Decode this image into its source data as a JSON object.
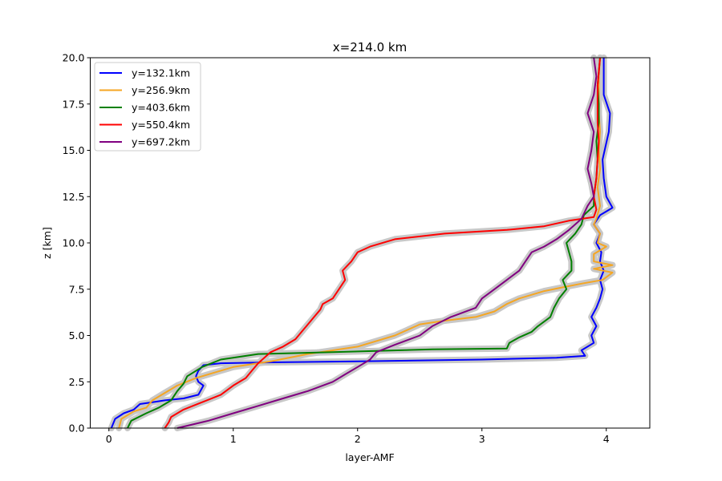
{
  "chart_data": {
    "type": "line",
    "title": "x=214.0 km",
    "xlabel": "layer-AMF",
    "ylabel": "z [km]",
    "xlim": [
      -0.15,
      4.35
    ],
    "ylim": [
      0,
      20
    ],
    "xticks": [
      0,
      1,
      2,
      3,
      4
    ],
    "yticks": [
      0.0,
      2.5,
      5.0,
      7.5,
      10.0,
      12.5,
      15.0,
      17.5,
      20.0
    ],
    "xtick_labels": [
      "0",
      "1",
      "2",
      "3",
      "4"
    ],
    "ytick_labels": [
      "0.0",
      "2.5",
      "5.0",
      "7.5",
      "10.0",
      "12.5",
      "15.0",
      "17.5",
      "20.0"
    ],
    "grid": false,
    "legend_position": "top-left",
    "shading_color": "#c8c8c8",
    "series": [
      {
        "name": "y=132.1km",
        "color": "#0000ff",
        "points": [
          [
            0.02,
            0
          ],
          [
            0.05,
            0.5
          ],
          [
            0.12,
            0.8
          ],
          [
            0.2,
            1.0
          ],
          [
            0.25,
            1.3
          ],
          [
            0.35,
            1.4
          ],
          [
            0.45,
            1.5
          ],
          [
            0.6,
            1.6
          ],
          [
            0.72,
            1.8
          ],
          [
            0.76,
            2.3
          ],
          [
            0.72,
            2.5
          ],
          [
            0.7,
            2.8
          ],
          [
            0.72,
            3.1
          ],
          [
            0.76,
            3.4
          ],
          [
            0.9,
            3.5
          ],
          [
            1.3,
            3.55
          ],
          [
            2.0,
            3.6
          ],
          [
            3.0,
            3.7
          ],
          [
            3.6,
            3.8
          ],
          [
            3.83,
            3.9
          ],
          [
            3.8,
            4.2
          ],
          [
            3.9,
            4.6
          ],
          [
            3.88,
            5.0
          ],
          [
            3.92,
            5.5
          ],
          [
            3.88,
            6.0
          ],
          [
            3.92,
            6.5
          ],
          [
            3.95,
            7.0
          ],
          [
            3.97,
            7.5
          ],
          [
            3.95,
            8.0
          ],
          [
            3.98,
            8.5
          ],
          [
            3.95,
            9.0
          ],
          [
            3.96,
            9.5
          ],
          [
            3.92,
            10.0
          ],
          [
            3.95,
            10.5
          ],
          [
            3.9,
            11.0
          ],
          [
            3.95,
            11.5
          ],
          [
            4.05,
            11.9
          ],
          [
            4.0,
            12.5
          ],
          [
            3.98,
            13.5
          ],
          [
            3.97,
            14.5
          ],
          [
            4.02,
            16.0
          ],
          [
            4.03,
            17.0
          ],
          [
            3.98,
            18.0
          ],
          [
            3.98,
            19.0
          ],
          [
            3.98,
            20.0
          ]
        ]
      },
      {
        "name": "y=256.9km",
        "color": "#f5a623",
        "points": [
          [
            0.08,
            0
          ],
          [
            0.1,
            0.5
          ],
          [
            0.2,
            0.9
          ],
          [
            0.3,
            1.1
          ],
          [
            0.35,
            1.5
          ],
          [
            0.45,
            1.9
          ],
          [
            0.55,
            2.3
          ],
          [
            0.7,
            2.7
          ],
          [
            0.85,
            3.0
          ],
          [
            1.0,
            3.3
          ],
          [
            1.3,
            3.6
          ],
          [
            1.6,
            4.0
          ],
          [
            2.0,
            4.4
          ],
          [
            2.3,
            5.0
          ],
          [
            2.4,
            5.3
          ],
          [
            2.5,
            5.6
          ],
          [
            2.7,
            5.8
          ],
          [
            2.95,
            6.0
          ],
          [
            3.1,
            6.3
          ],
          [
            3.2,
            6.7
          ],
          [
            3.3,
            7.0
          ],
          [
            3.5,
            7.4
          ],
          [
            3.65,
            7.6
          ],
          [
            3.8,
            7.8
          ],
          [
            3.97,
            8.0
          ],
          [
            4.05,
            8.4
          ],
          [
            3.9,
            8.6
          ],
          [
            4.05,
            8.8
          ],
          [
            3.9,
            9.0
          ],
          [
            3.9,
            9.4
          ],
          [
            4.0,
            9.8
          ],
          [
            3.93,
            10.0
          ],
          [
            3.95,
            10.5
          ],
          [
            3.9,
            11.0
          ],
          [
            3.92,
            11.3
          ],
          [
            3.95,
            12.0
          ],
          [
            3.93,
            13.0
          ],
          [
            3.95,
            14.0
          ],
          [
            3.94,
            15.0
          ],
          [
            3.95,
            16.0
          ],
          [
            3.94,
            17.0
          ],
          [
            3.94,
            18.0
          ],
          [
            3.94,
            19.0
          ],
          [
            3.95,
            20.0
          ]
        ]
      },
      {
        "name": "y=403.6km",
        "color": "#008000",
        "points": [
          [
            0.15,
            0
          ],
          [
            0.18,
            0.4
          ],
          [
            0.3,
            0.8
          ],
          [
            0.4,
            1.1
          ],
          [
            0.5,
            1.5
          ],
          [
            0.55,
            2.0
          ],
          [
            0.6,
            2.4
          ],
          [
            0.63,
            2.8
          ],
          [
            0.75,
            3.3
          ],
          [
            0.9,
            3.7
          ],
          [
            1.2,
            4.0
          ],
          [
            1.8,
            4.1
          ],
          [
            2.6,
            4.25
          ],
          [
            3.2,
            4.3
          ],
          [
            3.22,
            4.6
          ],
          [
            3.3,
            4.9
          ],
          [
            3.4,
            5.2
          ],
          [
            3.45,
            5.5
          ],
          [
            3.55,
            6.0
          ],
          [
            3.58,
            6.5
          ],
          [
            3.62,
            7.0
          ],
          [
            3.68,
            7.5
          ],
          [
            3.65,
            8.0
          ],
          [
            3.72,
            8.5
          ],
          [
            3.72,
            9.0
          ],
          [
            3.7,
            9.5
          ],
          [
            3.68,
            10.0
          ],
          [
            3.75,
            10.5
          ],
          [
            3.8,
            11.0
          ],
          [
            3.82,
            11.5
          ],
          [
            3.9,
            12.0
          ],
          [
            3.9,
            12.5
          ],
          [
            3.92,
            13.5
          ],
          [
            3.93,
            14.5
          ],
          [
            3.92,
            15.5
          ],
          [
            3.94,
            16.5
          ],
          [
            3.94,
            17.5
          ],
          [
            3.93,
            18.5
          ],
          [
            3.95,
            20.0
          ]
        ]
      },
      {
        "name": "y=550.4km",
        "color": "#ff0000",
        "points": [
          [
            0.45,
            0
          ],
          [
            0.48,
            0.3
          ],
          [
            0.5,
            0.6
          ],
          [
            0.6,
            1.0
          ],
          [
            0.75,
            1.4
          ],
          [
            0.9,
            1.8
          ],
          [
            1.0,
            2.3
          ],
          [
            1.1,
            2.7
          ],
          [
            1.15,
            3.1
          ],
          [
            1.2,
            3.5
          ],
          [
            1.25,
            3.8
          ],
          [
            1.3,
            4.1
          ],
          [
            1.4,
            4.4
          ],
          [
            1.5,
            4.8
          ],
          [
            1.55,
            5.2
          ],
          [
            1.6,
            5.6
          ],
          [
            1.65,
            6.0
          ],
          [
            1.7,
            6.4
          ],
          [
            1.72,
            6.7
          ],
          [
            1.8,
            7.0
          ],
          [
            1.85,
            7.5
          ],
          [
            1.9,
            8.0
          ],
          [
            1.88,
            8.5
          ],
          [
            1.95,
            9.0
          ],
          [
            2.0,
            9.5
          ],
          [
            2.1,
            9.8
          ],
          [
            2.3,
            10.2
          ],
          [
            2.7,
            10.5
          ],
          [
            3.2,
            10.7
          ],
          [
            3.5,
            10.9
          ],
          [
            3.7,
            11.2
          ],
          [
            3.9,
            11.4
          ],
          [
            3.92,
            11.8
          ],
          [
            3.9,
            12.5
          ],
          [
            3.92,
            13.5
          ],
          [
            3.93,
            14.5
          ],
          [
            3.94,
            15.5
          ],
          [
            3.93,
            16.5
          ],
          [
            3.93,
            17.5
          ],
          [
            3.93,
            18.5
          ],
          [
            3.95,
            20.0
          ]
        ]
      },
      {
        "name": "y=697.2km",
        "color": "#800080",
        "points": [
          [
            0.55,
            0
          ],
          [
            0.8,
            0.4
          ],
          [
            1.0,
            0.8
          ],
          [
            1.2,
            1.2
          ],
          [
            1.4,
            1.6
          ],
          [
            1.6,
            2.0
          ],
          [
            1.8,
            2.5
          ],
          [
            1.9,
            2.9
          ],
          [
            2.0,
            3.3
          ],
          [
            2.1,
            3.7
          ],
          [
            2.15,
            4.1
          ],
          [
            2.3,
            4.5
          ],
          [
            2.5,
            5.0
          ],
          [
            2.6,
            5.5
          ],
          [
            2.75,
            6.0
          ],
          [
            2.95,
            6.5
          ],
          [
            3.0,
            7.0
          ],
          [
            3.1,
            7.5
          ],
          [
            3.2,
            8.0
          ],
          [
            3.3,
            8.5
          ],
          [
            3.35,
            9.0
          ],
          [
            3.4,
            9.5
          ],
          [
            3.5,
            9.8
          ],
          [
            3.6,
            10.2
          ],
          [
            3.7,
            10.7
          ],
          [
            3.8,
            11.3
          ],
          [
            3.85,
            12.0
          ],
          [
            3.9,
            12.5
          ],
          [
            3.88,
            13.2
          ],
          [
            3.85,
            14.0
          ],
          [
            3.88,
            15.0
          ],
          [
            3.9,
            16.0
          ],
          [
            3.85,
            17.0
          ],
          [
            3.9,
            18.0
          ],
          [
            3.92,
            19.0
          ],
          [
            3.9,
            20.0
          ]
        ]
      }
    ]
  }
}
